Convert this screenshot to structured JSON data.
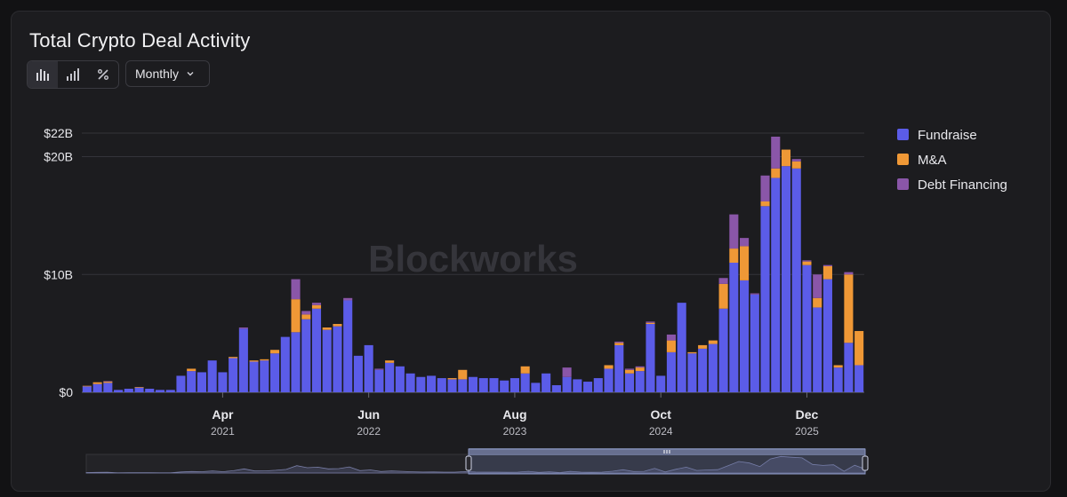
{
  "header": {
    "title": "Total Crypto Deal Activity",
    "interval_selected": "Monthly",
    "view_toggles": [
      {
        "name": "stacked-bars-icon",
        "active": true
      },
      {
        "name": "bars-icon",
        "active": false
      },
      {
        "name": "percent-icon",
        "active": false
      }
    ]
  },
  "watermark": "Blockworks",
  "colors": {
    "fundraise": "#5b5ce8",
    "ma": "#ef9836",
    "debt": "#8a56a8",
    "background": "#1c1c1f",
    "grid": "#34343a",
    "text": "#e8e8ec",
    "subtext": "#bdbdc4"
  },
  "chart_data": {
    "type": "bar",
    "stacked": true,
    "title": "Total Crypto Deal Activity",
    "xlabel": "",
    "ylabel": "",
    "ylim": [
      0,
      22
    ],
    "y_unit": "B",
    "y_ticks": [
      {
        "value": 0,
        "label": "$0"
      },
      {
        "value": 10,
        "label": "$10B"
      },
      {
        "value": 20,
        "label": "$20B"
      },
      {
        "value": 22,
        "label": "$22B"
      }
    ],
    "x_ticks": [
      {
        "month": "Apr",
        "year": "2021",
        "index": 13
      },
      {
        "month": "Jun",
        "year": "2022",
        "index": 27
      },
      {
        "month": "Aug",
        "year": "2023",
        "index": 41
      },
      {
        "month": "Oct",
        "year": "2024",
        "index": 55
      },
      {
        "month": "Dec",
        "year": "2025",
        "index": 69
      }
    ],
    "legend_position": "top-right",
    "grid": true,
    "series": [
      {
        "name": "Fundraise",
        "values": [
          0.5,
          0.7,
          0.8,
          0.2,
          0.3,
          0.4,
          0.3,
          0.2,
          0.2,
          1.4,
          1.8,
          1.7,
          2.7,
          1.7,
          2.9,
          5.4,
          2.6,
          2.7,
          3.3,
          4.7,
          5.1,
          6.2,
          7.1,
          5.3,
          5.6,
          7.8,
          3.1,
          4.0,
          1.9,
          2.5,
          2.2,
          1.6,
          1.3,
          1.4,
          1.2,
          1.1,
          1.1,
          1.3,
          1.2,
          1.2,
          1.0,
          1.2,
          1.6,
          0.8,
          1.6,
          0.6,
          1.3,
          1.1,
          0.9,
          1.2,
          2.0,
          4.0,
          1.6,
          1.8,
          5.8,
          1.4,
          3.4,
          7.6,
          3.3,
          3.7,
          4.1,
          7.1,
          11.0,
          9.5,
          8.3,
          15.8,
          18.2,
          19.2,
          19.0,
          10.8,
          7.2,
          9.6,
          2.1,
          4.2,
          2.3
        ]
      },
      {
        "name": "M&A",
        "values": [
          0.05,
          0.15,
          0.1,
          0,
          0,
          0.05,
          0,
          0,
          0,
          0,
          0.2,
          0,
          0,
          0,
          0.1,
          0,
          0.1,
          0.1,
          0.3,
          0,
          2.8,
          0.4,
          0.3,
          0.2,
          0.2,
          0,
          0,
          0,
          0,
          0.2,
          0,
          0,
          0,
          0,
          0,
          0.1,
          0.8,
          0,
          0,
          0,
          0,
          0,
          0.6,
          0,
          0,
          0,
          0,
          0,
          0,
          0,
          0.3,
          0.2,
          0.3,
          0.3,
          0.1,
          0,
          1.0,
          0,
          0.1,
          0.3,
          0.3,
          2.1,
          1.2,
          2.9,
          0,
          0.4,
          0.8,
          1.4,
          0.6,
          0.3,
          0.8,
          1.1,
          0.2,
          5.8,
          2.9
        ]
      },
      {
        "name": "Debt Financing",
        "values": [
          0,
          0,
          0.05,
          0,
          0,
          0,
          0,
          0,
          0,
          0,
          0,
          0,
          0,
          0,
          0,
          0.1,
          0,
          0,
          0,
          0,
          1.7,
          0.3,
          0.2,
          0,
          0,
          0.2,
          0,
          0,
          0.1,
          0,
          0,
          0,
          0,
          0,
          0,
          0,
          0,
          0,
          0,
          0,
          0,
          0,
          0,
          0,
          0,
          0,
          0.8,
          0,
          0,
          0,
          0,
          0.1,
          0.1,
          0.1,
          0.1,
          0,
          0.5,
          0,
          0,
          0,
          0,
          0.5,
          2.9,
          0.7,
          0.1,
          2.2,
          2.7,
          0,
          0.2,
          0.1,
          2.0,
          0.1,
          0,
          0.2,
          0
        ]
      }
    ]
  }
}
